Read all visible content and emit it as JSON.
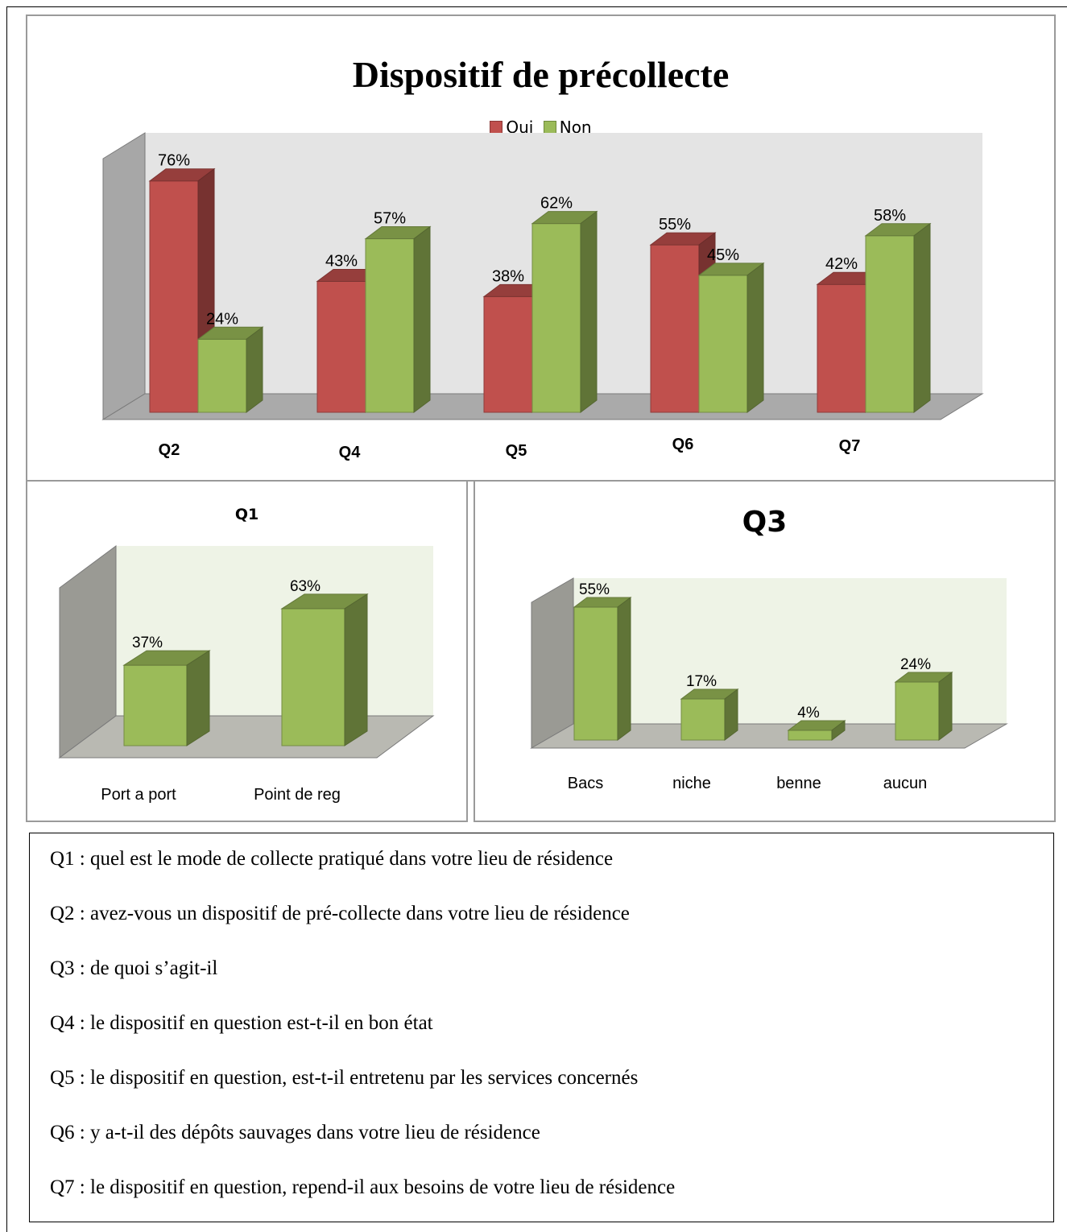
{
  "chart_data": [
    {
      "type": "bar",
      "title": "Dispositif de précollecte",
      "categories": [
        "Q2",
        "Q4",
        "Q5",
        "Q6",
        "Q7"
      ],
      "series": [
        {
          "name": "Oui",
          "values": [
            76,
            43,
            38,
            55,
            42
          ],
          "labels": [
            "76%",
            "43%",
            "38%",
            "55%",
            "42%"
          ],
          "color": "#c0504d"
        },
        {
          "name": "Non",
          "values": [
            24,
            57,
            62,
            45,
            58
          ],
          "labels": [
            "24%",
            "57%",
            "62%",
            "45%",
            "58%"
          ],
          "color": "#9bbb59"
        }
      ],
      "ylim": [
        0,
        100
      ],
      "legend": "top-center",
      "grid": false
    },
    {
      "type": "bar",
      "title": "Q1",
      "categories": [
        "Port a port",
        "Point de reg"
      ],
      "values": [
        37,
        63
      ],
      "labels": [
        "37%",
        "63%"
      ],
      "color": "#9bbb59",
      "ylim": [
        0,
        100
      ],
      "grid": false
    },
    {
      "type": "bar",
      "title": "Q3",
      "categories": [
        "Bacs",
        "niche",
        "benne",
        "aucun"
      ],
      "values": [
        55,
        17,
        4,
        24
      ],
      "labels": [
        "55%",
        "17%",
        "4%",
        "24%"
      ],
      "color": "#9bbb59",
      "ylim": [
        0,
        100
      ],
      "grid": false
    }
  ],
  "definitions": [
    "Q1 : quel est le mode de collecte pratiqué dans votre lieu de résidence",
    "Q2 : avez-vous un dispositif de pré-collecte dans votre lieu de résidence",
    "Q3 : de quoi s’agit-il",
    "Q4 : le dispositif en question est-t-il en bon état",
    "Q5 : le dispositif  en question, est-t-il entretenu par les services concernés",
    "Q6 : y a-t-il des dépôts sauvages dans votre lieu de résidence",
    "Q7 : le dispositif en question, repend-il aux besoins de votre lieu de résidence"
  ]
}
